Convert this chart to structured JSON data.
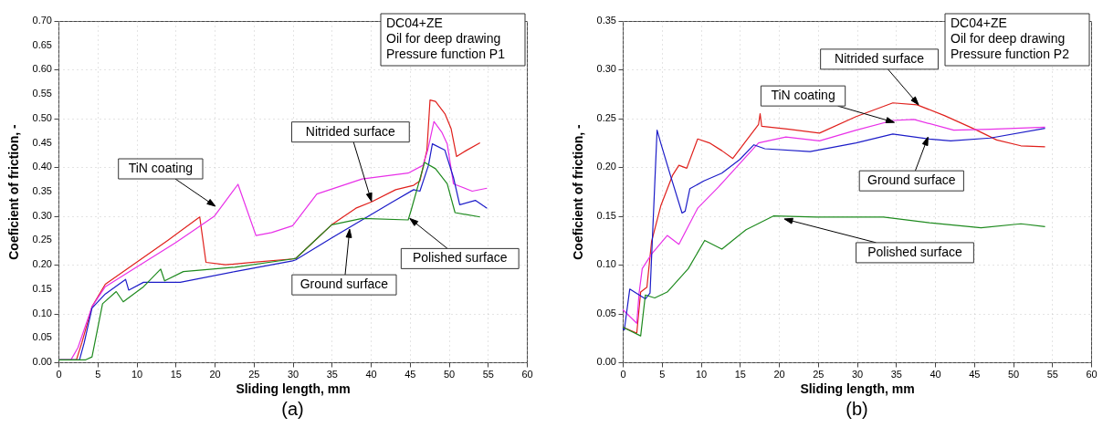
{
  "chart_data": [
    {
      "type": "line",
      "title": "(a)",
      "xlabel": "Sliding length, mm",
      "ylabel": "Coeficient of friction, -",
      "xlim": [
        0,
        60
      ],
      "ylim": [
        0,
        0.7
      ],
      "xticks": [
        0,
        5,
        10,
        15,
        20,
        25,
        30,
        35,
        40,
        45,
        50,
        55,
        60
      ],
      "yticks": [
        {
          "value": 0,
          "label": "0.00"
        },
        {
          "value": 0.05,
          "label": "0.05"
        },
        {
          "value": 0.1,
          "label": "0.10"
        },
        {
          "value": 0.15,
          "label": "0.15"
        },
        {
          "value": 0.2,
          "label": "0.20"
        },
        {
          "value": 0.25,
          "label": "0.25"
        },
        {
          "value": 0.3,
          "label": "0.30"
        },
        {
          "value": 0.35,
          "label": "0.35"
        },
        {
          "value": 0.4,
          "label": "0.40"
        },
        {
          "value": 0.45,
          "label": "0.45"
        },
        {
          "value": 0.5,
          "label": "0.50"
        },
        {
          "value": 0.55,
          "label": "0.55"
        },
        {
          "value": 0.6,
          "label": "0.60"
        },
        {
          "value": 0.65,
          "label": "0.65"
        },
        {
          "value": 0.7,
          "label": "0.70"
        }
      ],
      "grid": true,
      "series": [
        {
          "color": "#e0201c",
          "x": [
            0,
            2.3,
            3,
            4.3,
            6,
            10,
            14,
            18.1,
            18.9,
            21.4,
            25,
            30,
            30.4,
            35,
            38.1,
            40.1,
            43.2,
            45.5,
            46.3,
            47.2,
            47.6,
            48.3,
            49.5,
            50.3,
            51,
            52.2,
            54
          ],
          "values": [
            0.005,
            0.005,
            0.04,
            0.114,
            0.16,
            0.205,
            0.25,
            0.298,
            0.205,
            0.2,
            0.205,
            0.212,
            0.213,
            0.282,
            0.316,
            0.329,
            0.354,
            0.363,
            0.372,
            0.435,
            0.538,
            0.535,
            0.51,
            0.479,
            0.422,
            0.434,
            0.45
          ]
        },
        {
          "color": "#e830e8",
          "x": [
            0,
            1.6,
            2.5,
            4.3,
            6,
            10,
            15,
            20,
            23,
            25.3,
            27.3,
            30,
            33.1,
            38.9,
            44.8,
            46.7,
            47.3,
            48.1,
            49.1,
            49.8,
            50.6,
            53,
            54.9
          ],
          "values": [
            0.005,
            0.005,
            0.03,
            0.114,
            0.155,
            0.195,
            0.245,
            0.3,
            0.365,
            0.26,
            0.266,
            0.28,
            0.345,
            0.376,
            0.388,
            0.404,
            0.435,
            0.494,
            0.472,
            0.448,
            0.366,
            0.351,
            0.357
          ]
        },
        {
          "color": "#1c1cc8",
          "x": [
            0,
            2.7,
            3.3,
            4.3,
            6,
            8.6,
            9,
            10.9,
            15.6,
            22.6,
            30,
            30.4,
            35.1,
            38.9,
            42.8,
            45.5,
            46.3,
            47.4,
            47.9,
            49.5,
            50.6,
            51.4,
            53.4,
            54.9
          ],
          "values": [
            0.005,
            0.005,
            0.04,
            0.111,
            0.14,
            0.17,
            0.148,
            0.164,
            0.164,
            0.186,
            0.208,
            0.21,
            0.256,
            0.292,
            0.329,
            0.354,
            0.351,
            0.404,
            0.448,
            0.435,
            0.379,
            0.323,
            0.332,
            0.316
          ]
        },
        {
          "color": "#1e8a1e",
          "x": [
            0,
            3.5,
            4.3,
            5.65,
            7.4,
            8.3,
            10.9,
            13.1,
            13.6,
            16,
            22.6,
            30,
            30.4,
            35,
            38.9,
            44.8,
            45.2,
            46.9,
            48.3,
            49.8,
            50.8,
            54
          ],
          "values": [
            0.005,
            0.005,
            0.011,
            0.12,
            0.145,
            0.124,
            0.155,
            0.191,
            0.167,
            0.186,
            0.195,
            0.212,
            0.213,
            0.282,
            0.295,
            0.292,
            0.313,
            0.41,
            0.397,
            0.366,
            0.307,
            0.298
          ]
        }
      ],
      "annotations": [
        "DC04+ZE\nOil for deep drawing\nPressure function P1",
        {
          "text": "TiN coating",
          "x": 20.1,
          "y": 0.32
        },
        {
          "text": "Nitrided surface",
          "x": 40.1,
          "y": 0.33
        },
        {
          "text": "Ground surface",
          "x": 37.3,
          "y": 0.273
        },
        {
          "text": "Polished surface",
          "x": 45,
          "y": 0.295
        }
      ]
    },
    {
      "type": "line",
      "title": "(b)",
      "xlabel": "Sliding length, mm",
      "ylabel": "Coeficient of friction, -",
      "xlim": [
        0,
        60
      ],
      "ylim": [
        0,
        0.35
      ],
      "xticks": [
        0,
        5,
        10,
        15,
        20,
        25,
        30,
        35,
        40,
        45,
        50,
        55,
        60
      ],
      "yticks": [
        {
          "value": 0,
          "label": "0.00"
        },
        {
          "value": 0.05,
          "label": "0.05"
        },
        {
          "value": 0.1,
          "label": "0.10"
        },
        {
          "value": 0.15,
          "label": "0.15"
        },
        {
          "value": 0.2,
          "label": "0.20"
        },
        {
          "value": 0.25,
          "label": "0.25"
        },
        {
          "value": 0.3,
          "label": "0.30"
        },
        {
          "value": 0.35,
          "label": "0.35"
        }
      ],
      "grid": true,
      "series": [
        {
          "color": "#e0201c",
          "x": [
            0,
            1.8,
            2.3,
            3.1,
            3.7,
            4.9,
            6.4,
            7.2,
            8.2,
            9.6,
            11.1,
            12.7,
            14.1,
            15.8,
            17.4,
            17.6,
            17.8,
            21.3,
            25.2,
            29.9,
            34.6,
            37.7,
            41.2,
            45.1,
            47.9,
            51,
            54.1
          ],
          "values": [
            0.036,
            0.03,
            0.072,
            0.077,
            0.124,
            0.161,
            0.192,
            0.202,
            0.199,
            0.229,
            0.225,
            0.217,
            0.209,
            0.227,
            0.244,
            0.255,
            0.242,
            0.239,
            0.235,
            0.252,
            0.266,
            0.264,
            0.253,
            0.239,
            0.228,
            0.222,
            0.221
          ]
        },
        {
          "color": "#e830e8",
          "x": [
            0,
            1.8,
            2.1,
            2.5,
            3.7,
            5.7,
            7.2,
            9.6,
            12.3,
            15.8,
            17.4,
            20.9,
            25.2,
            29.9,
            34.6,
            37.3,
            42.4,
            47.1,
            54.1
          ],
          "values": [
            0.054,
            0.04,
            0.071,
            0.096,
            0.111,
            0.13,
            0.121,
            0.158,
            0.18,
            0.211,
            0.225,
            0.231,
            0.227,
            0.238,
            0.248,
            0.249,
            0.238,
            0.239,
            0.241
          ]
        },
        {
          "color": "#1c1cc8",
          "x": [
            0,
            0.2,
            0.9,
            2.9,
            3.5,
            4.4,
            4.9,
            6.1,
            7.6,
            8,
            8.6,
            10.4,
            12.7,
            15,
            16.8,
            18.2,
            24,
            29.9,
            34.6,
            39.3,
            42,
            47.1,
            54.1
          ],
          "values": [
            0.035,
            0.033,
            0.075,
            0.065,
            0.071,
            0.238,
            0.224,
            0.192,
            0.153,
            0.155,
            0.178,
            0.186,
            0.194,
            0.208,
            0.223,
            0.219,
            0.216,
            0.225,
            0.234,
            0.229,
            0.227,
            0.23,
            0.24
          ]
        },
        {
          "color": "#1e8a1e",
          "x": [
            0,
            2.3,
            2.9,
            4.1,
            5.7,
            8.4,
            10.5,
            12.7,
            15.8,
            19.3,
            24.8,
            29.9,
            33.4,
            39.3,
            45.9,
            51,
            54.1
          ],
          "values": [
            0.036,
            0.027,
            0.069,
            0.066,
            0.072,
            0.096,
            0.125,
            0.116,
            0.136,
            0.15,
            0.149,
            0.149,
            0.149,
            0.143,
            0.138,
            0.142,
            0.139
          ]
        }
      ],
      "annotations": [
        "DC04+ZE\nOil for deep drawing\nPressure function P2",
        {
          "text": "Nitrided surface",
          "x": 37.9,
          "y": 0.264
        },
        {
          "text": "TiN coating",
          "x": 34.8,
          "y": 0.246
        },
        {
          "text": "Ground surface",
          "x": 39.1,
          "y": 0.231
        },
        {
          "text": "Polished surface",
          "x": 20.7,
          "y": 0.147
        }
      ]
    }
  ]
}
